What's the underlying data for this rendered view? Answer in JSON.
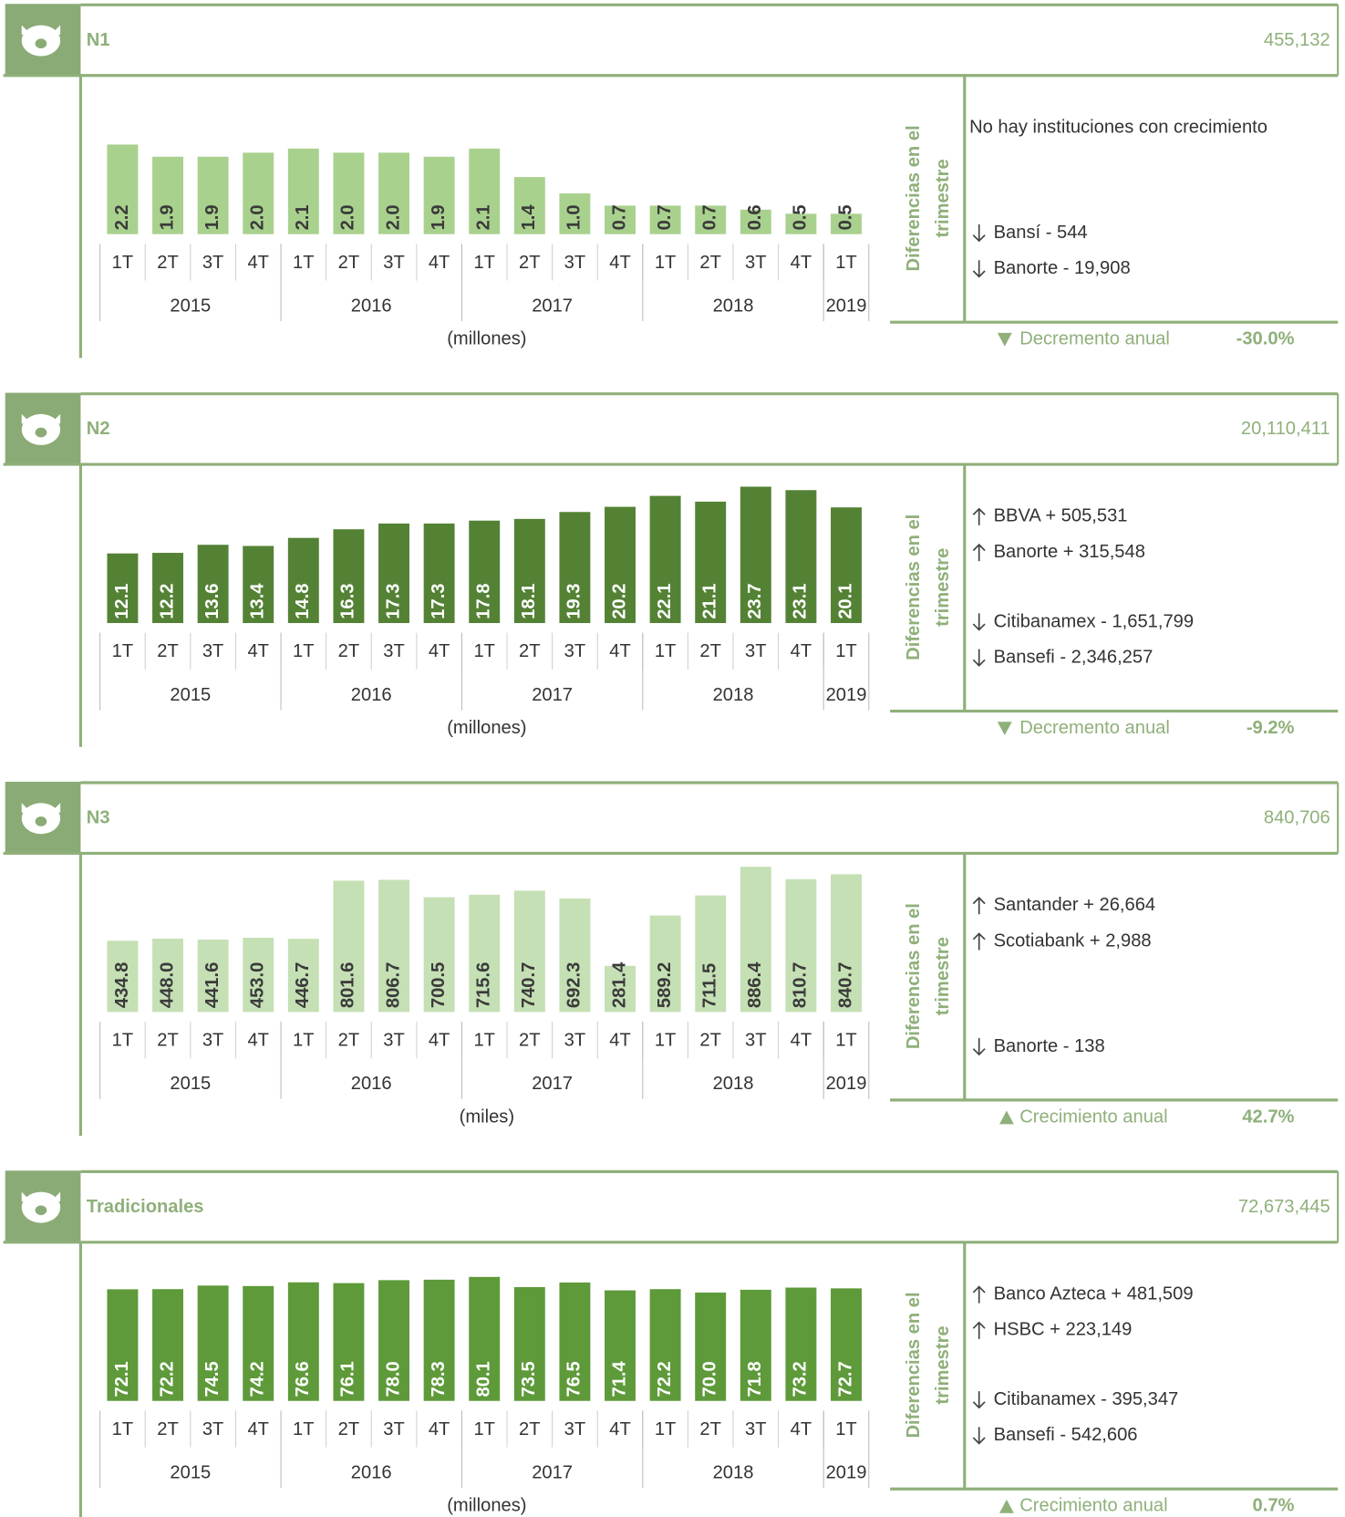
{
  "chart_data": [
    {
      "type": "bar",
      "title": "N1",
      "total": "455,132",
      "color": "#a9d18e",
      "label_color": "#3a3a3a",
      "categories": [
        "1T",
        "2T",
        "3T",
        "4T",
        "1T",
        "2T",
        "3T",
        "4T",
        "1T",
        "2T",
        "3T",
        "4T",
        "1T",
        "2T",
        "3T",
        "4T",
        "1T"
      ],
      "groups": [
        {
          "label": "2015",
          "size": 4
        },
        {
          "label": "2016",
          "size": 4
        },
        {
          "label": "2017",
          "size": 4
        },
        {
          "label": "2018",
          "size": 4
        },
        {
          "label": "2019",
          "size": 1
        }
      ],
      "values": [
        2.2,
        1.9,
        1.9,
        2.0,
        2.1,
        2.0,
        2.0,
        1.9,
        2.1,
        1.4,
        1.0,
        0.7,
        0.7,
        0.7,
        0.6,
        0.5,
        0.5
      ],
      "value_labels": [
        "2.2",
        "1.9",
        "1.9",
        "2.0",
        "2.1",
        "2.0",
        "2.0",
        "1.9",
        "2.1",
        "1.4",
        "1.0",
        "0.7",
        "0.7",
        "0.7",
        "0.6",
        "0.5",
        "0.5"
      ],
      "ylim": [
        0,
        3.8
      ],
      "unit_label": "(millones)",
      "side_label": [
        "Diferencias en el",
        "trimestre"
      ],
      "changes": [
        {
          "arrow": null,
          "text": "No hay instituciones con crecimiento"
        },
        {
          "arrow": "down",
          "text": "Bansí - 544"
        },
        {
          "arrow": "down",
          "text": "Banorte - 19,908"
        }
      ],
      "annual": {
        "direction": "down",
        "label": "Decremento anual",
        "value": "-30.0%"
      }
    },
    {
      "type": "bar",
      "title": "N2",
      "total": "20,110,411",
      "color": "#548235",
      "label_color": "#ffffff",
      "categories": [
        "1T",
        "2T",
        "3T",
        "4T",
        "1T",
        "2T",
        "3T",
        "4T",
        "1T",
        "2T",
        "3T",
        "4T",
        "1T",
        "2T",
        "3T",
        "4T",
        "1T"
      ],
      "groups": [
        {
          "label": "2015",
          "size": 4
        },
        {
          "label": "2016",
          "size": 4
        },
        {
          "label": "2017",
          "size": 4
        },
        {
          "label": "2018",
          "size": 4
        },
        {
          "label": "2019",
          "size": 1
        }
      ],
      "values": [
        12.1,
        12.2,
        13.6,
        13.4,
        14.8,
        16.3,
        17.3,
        17.3,
        17.8,
        18.1,
        19.3,
        20.2,
        22.1,
        21.1,
        23.7,
        23.1,
        20.1
      ],
      "value_labels": [
        "12.1",
        "12.2",
        "13.6",
        "13.4",
        "14.8",
        "16.3",
        "17.3",
        "17.3",
        "17.8",
        "18.1",
        "19.3",
        "20.2",
        "22.1",
        "21.1",
        "23.7",
        "23.1",
        "20.1"
      ],
      "ylim": [
        0,
        26.9
      ],
      "unit_label": "(millones)",
      "side_label": [
        "Diferencias en el",
        "trimestre"
      ],
      "changes": [
        {
          "arrow": "up",
          "text": "BBVA + 505,531"
        },
        {
          "arrow": "up",
          "text": "Banorte + 315,548"
        },
        {
          "arrow": "down",
          "text": "Citibanamex - 1,651,799"
        },
        {
          "arrow": "down",
          "text": "Bansefi - 2,346,257"
        }
      ],
      "annual": {
        "direction": "down",
        "label": "Decremento anual",
        "value": "-9.2%"
      }
    },
    {
      "type": "bar",
      "title": "N3",
      "total": "840,706",
      "color": "#c5e0b4",
      "label_color": "#3a3a3a",
      "categories": [
        "1T",
        "2T",
        "3T",
        "4T",
        "1T",
        "2T",
        "3T",
        "4T",
        "1T",
        "2T",
        "3T",
        "4T",
        "1T",
        "2T",
        "3T",
        "4T",
        "1T"
      ],
      "groups": [
        {
          "label": "2015",
          "size": 4
        },
        {
          "label": "2016",
          "size": 4
        },
        {
          "label": "2017",
          "size": 4
        },
        {
          "label": "2018",
          "size": 4
        },
        {
          "label": "2019",
          "size": 1
        }
      ],
      "values": [
        434.8,
        448.0,
        441.6,
        453.0,
        446.7,
        801.6,
        806.7,
        700.5,
        715.6,
        740.7,
        692.3,
        281.4,
        589.2,
        711.5,
        886.4,
        810.7,
        840.7
      ],
      "value_labels": [
        "434.8",
        "448.0",
        "441.6",
        "453.0",
        "446.7",
        "801.6",
        "806.7",
        "700.5",
        "715.6",
        "740.7",
        "692.3",
        "281.4",
        "589.2",
        "711.5",
        "886.4",
        "810.7",
        "840.7"
      ],
      "ylim": [
        0,
        945
      ],
      "unit_label": "(miles)",
      "side_label": [
        "Diferencias en el",
        "trimestre"
      ],
      "changes": [
        {
          "arrow": "up",
          "text": "Santander + 26,664"
        },
        {
          "arrow": "up",
          "text": "Scotiabank + 2,988"
        },
        {
          "arrow": "down",
          "text": "Banorte - 138"
        }
      ],
      "annual": {
        "direction": "up",
        "label": "Crecimiento anual",
        "value": "42.7%"
      }
    },
    {
      "type": "bar",
      "title": "Tradicionales",
      "total": "72,673,445",
      "color": "#5e9a3a",
      "label_color": "#ffffff",
      "categories": [
        "1T",
        "2T",
        "3T",
        "4T",
        "1T",
        "2T",
        "3T",
        "4T",
        "1T",
        "2T",
        "3T",
        "4T",
        "1T",
        "2T",
        "3T",
        "4T",
        "1T"
      ],
      "groups": [
        {
          "label": "2015",
          "size": 4
        },
        {
          "label": "2016",
          "size": 4
        },
        {
          "label": "2017",
          "size": 4
        },
        {
          "label": "2018",
          "size": 4
        },
        {
          "label": "2019",
          "size": 1
        }
      ],
      "values": [
        72.1,
        72.2,
        74.5,
        74.2,
        76.6,
        76.1,
        78.0,
        78.3,
        80.1,
        73.5,
        76.5,
        71.4,
        72.2,
        70.0,
        71.8,
        73.2,
        72.7
      ],
      "value_labels": [
        "72.1",
        "72.2",
        "74.5",
        "74.2",
        "76.6",
        "76.1",
        "78.0",
        "78.3",
        "80.1",
        "73.5",
        "76.5",
        "71.4",
        "72.2",
        "70.0",
        "71.8",
        "73.2",
        "72.7"
      ],
      "ylim": [
        0,
        100
      ],
      "unit_label": "(millones)",
      "side_label": [
        "Diferencias en el",
        "trimestre"
      ],
      "changes": [
        {
          "arrow": "up",
          "text": "Banco Azteca + 481,509"
        },
        {
          "arrow": "up",
          "text": "HSBC + 223,149"
        },
        {
          "arrow": "down",
          "text": "Citibanamex - 395,347"
        },
        {
          "arrow": "down",
          "text": "Bansefi - 542,606"
        }
      ],
      "annual": {
        "direction": "up",
        "label": "Crecimiento anual",
        "value": "0.7%"
      }
    }
  ]
}
